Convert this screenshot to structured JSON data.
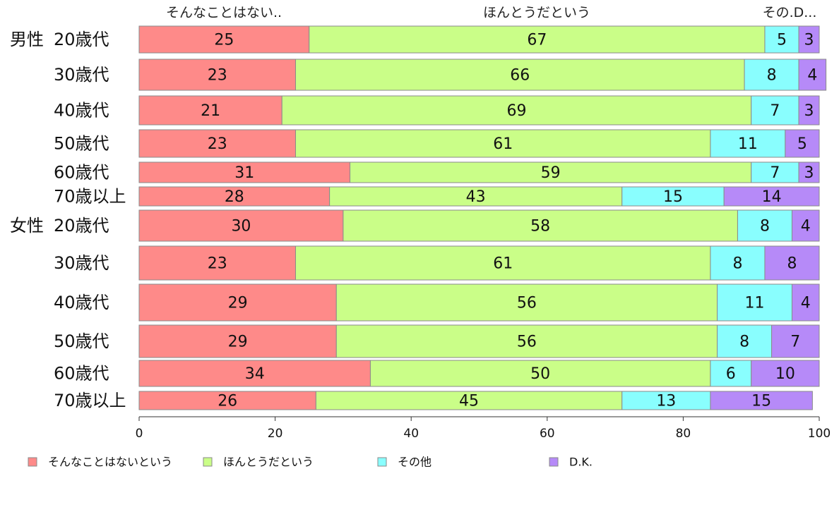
{
  "chart_data": {
    "type": "bar",
    "orientation": "horizontal",
    "stacked": true,
    "xlim": [
      0,
      100
    ],
    "x_ticks": [
      "0",
      "20",
      "40",
      "60",
      "80",
      "100"
    ],
    "column_headers": [
      "そんなことはない..",
      "ほんとうだという",
      "その.D..."
    ],
    "groups": [
      {
        "label": "男性",
        "categories": [
          "20歳代",
          "30歳代",
          "40歳代",
          "50歳代",
          "60歳代",
          "70歳以上"
        ]
      },
      {
        "label": "女性",
        "categories": [
          "20歳代",
          "30歳代",
          "40歳代",
          "50歳代",
          "60歳代",
          "70歳以上"
        ]
      }
    ],
    "series": [
      {
        "name": "そんなことはないという",
        "color": "#fe8a89",
        "values": [
          25,
          23,
          21,
          23,
          31,
          28,
          30,
          23,
          29,
          29,
          34,
          26
        ]
      },
      {
        "name": "ほんとうだという",
        "color": "#cafe88",
        "values": [
          67,
          66,
          69,
          61,
          59,
          43,
          58,
          61,
          56,
          56,
          50,
          45
        ]
      },
      {
        "name": "その他",
        "color": "#89fefe",
        "values": [
          5,
          8,
          7,
          11,
          7,
          15,
          8,
          8,
          11,
          8,
          6,
          13
        ]
      },
      {
        "name": "D.K.",
        "color": "#b68af8",
        "values": [
          3,
          4,
          3,
          5,
          3,
          14,
          4,
          8,
          4,
          7,
          10,
          15
        ]
      }
    ],
    "legend_position": "bottom",
    "grid": false
  }
}
